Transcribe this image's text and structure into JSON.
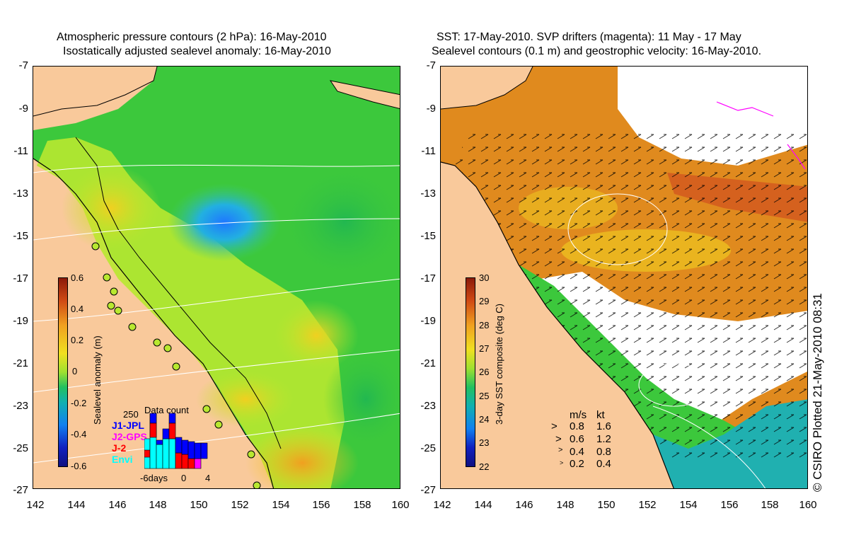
{
  "left_panel": {
    "title_line1": "Atmospheric pressure contours (2 hPa): 16-May-2010",
    "title_line2": "Isostatically adjusted sealevel anomaly: 16-May-2010",
    "colorbar": {
      "title": "Sealevel anomaly (m)",
      "ticks": [
        "0.6",
        "0.4",
        "0.2",
        "0",
        "-0.2",
        "-0.4",
        "-0.6"
      ]
    },
    "data_count": {
      "title": "Data count",
      "max_label": "250",
      "missions": [
        {
          "name": "J1-JPL",
          "color": "#0000ff"
        },
        {
          "name": "J2-GPS",
          "color": "#ff00ff"
        },
        {
          "name": "J-2",
          "color": "#ff0000"
        },
        {
          "name": "Envi",
          "color": "#00ffff"
        }
      ],
      "x_labels": [
        "-6days",
        "0",
        "4"
      ]
    }
  },
  "right_panel": {
    "title_line1": "SST: 17-May-2010. SVP drifters (magenta): 11 May - 17 May",
    "title_line2": "Sealevel contours (0.1 m) and geostrophic velocity: 16-May-2010.",
    "colorbar": {
      "title": "3-day SST composite (deg C)",
      "ticks": [
        "30",
        "29",
        "28",
        "27",
        "26",
        "25",
        "24",
        "23",
        "22"
      ]
    },
    "velocity_legend": {
      "header_ms": "m/s",
      "header_kt": "kt",
      "rows": [
        {
          "ms": "0.8",
          "kt": "1.6"
        },
        {
          "ms": "0.6",
          "kt": "1.2"
        },
        {
          "ms": "0.4",
          "kt": "0.8"
        },
        {
          "ms": "0.2",
          "kt": "0.4"
        }
      ]
    }
  },
  "axes": {
    "lat_ticks": [
      "-7",
      "-9",
      "-11",
      "-13",
      "-15",
      "-17",
      "-19",
      "-21",
      "-23",
      "-25",
      "-27"
    ],
    "lon_ticks": [
      "142",
      "144",
      "146",
      "148",
      "150",
      "152",
      "154",
      "156",
      "158",
      "160"
    ]
  },
  "copyright": "© CSIRO Plotted 21-May-2010 08:31",
  "colors": {
    "land": "#f9c99b",
    "ocean_green": "#3cc83c",
    "ocean_yellowgreen": "#b8e830",
    "low_blue": "#1e90ff",
    "sst_orange": "#e08a1e",
    "sst_cyan": "#20b0b0"
  }
}
